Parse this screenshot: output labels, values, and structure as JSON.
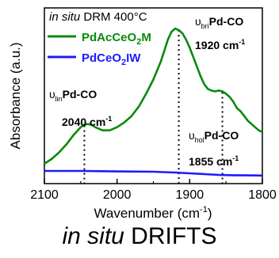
{
  "chart_data": {
    "type": "line",
    "title": "",
    "condition": {
      "italic": "in situ",
      "rest": " DRM 400°C"
    },
    "xlabel": "Wavenumber (cm",
    "xlabel_sup": "-1",
    "xlabel_end": ")",
    "ylabel": "Absorbance (a.u.)",
    "xlim": [
      2100,
      1800
    ],
    "x_reversed": true,
    "x_ticks": [
      2100,
      2000,
      1900,
      1800
    ],
    "x_tick_labels": [
      "2100",
      "2000",
      "1900",
      "1800"
    ],
    "ylim": [
      0,
      1
    ],
    "y_ticks_shown": false,
    "grid": false,
    "legend": {
      "placement": "top-left",
      "entries": [
        {
          "pre": "PdAcCeO",
          "sub": "2",
          "post": "M",
          "color": "#0a8a0a"
        },
        {
          "pre": "PdCeO",
          "sub": "2",
          "post": "IW",
          "color": "#1b1bff"
        }
      ]
    },
    "series": [
      {
        "name": "PdAcCeO2M",
        "color": "#0a8a0a",
        "x": [
          2100,
          2090,
          2080,
          2070,
          2060,
          2050,
          2045,
          2040,
          2035,
          2030,
          2020,
          2010,
          2000,
          1990,
          1980,
          1970,
          1960,
          1950,
          1940,
          1935,
          1930,
          1925,
          1920,
          1915,
          1910,
          1905,
          1900,
          1895,
          1890,
          1885,
          1880,
          1875,
          1870,
          1865,
          1860,
          1855,
          1850,
          1845,
          1840,
          1835,
          1830,
          1825,
          1820,
          1815,
          1810,
          1805,
          1800
        ],
        "y": [
          0.09,
          0.12,
          0.16,
          0.21,
          0.27,
          0.32,
          0.335,
          0.34,
          0.335,
          0.32,
          0.3,
          0.3,
          0.32,
          0.35,
          0.39,
          0.45,
          0.53,
          0.62,
          0.73,
          0.8,
          0.87,
          0.92,
          0.94,
          0.93,
          0.91,
          0.87,
          0.82,
          0.76,
          0.7,
          0.64,
          0.59,
          0.56,
          0.55,
          0.545,
          0.55,
          0.545,
          0.53,
          0.51,
          0.48,
          0.44,
          0.42,
          0.39,
          0.36,
          0.34,
          0.32,
          0.3,
          0.29
        ]
      },
      {
        "name": "PdCeO2IW",
        "color": "#1b1bff",
        "x": [
          2100,
          2050,
          2000,
          1950,
          1920,
          1900,
          1880,
          1860,
          1840,
          1820,
          1800
        ],
        "y": [
          0.045,
          0.045,
          0.042,
          0.04,
          0.035,
          0.03,
          0.025,
          0.02,
          0.018,
          0.017,
          0.016
        ]
      }
    ],
    "annotations": [
      {
        "name": "bridge",
        "symbol": "υ",
        "sub": "bri",
        "text": "Pd-CO",
        "value": "1920 cm",
        "sup": "-1",
        "x": 1915,
        "line_from": 0.93,
        "line_to": 0.0
      },
      {
        "name": "linear",
        "symbol": "υ",
        "sub": "lin",
        "text": "Pd-CO",
        "value": "2040 cm",
        "sup": "-1",
        "x": 2045,
        "line_from": 0.33,
        "line_to": 0.0
      },
      {
        "name": "hollow",
        "symbol": "υ",
        "sub": "hol",
        "text": "Pd-CO",
        "value": "1855 cm",
        "sup": "-1",
        "x": 1855,
        "line_from": 0.54,
        "line_to": 0.0
      }
    ]
  },
  "caption": {
    "italic": "in situ",
    "rest": " DRIFTS"
  }
}
